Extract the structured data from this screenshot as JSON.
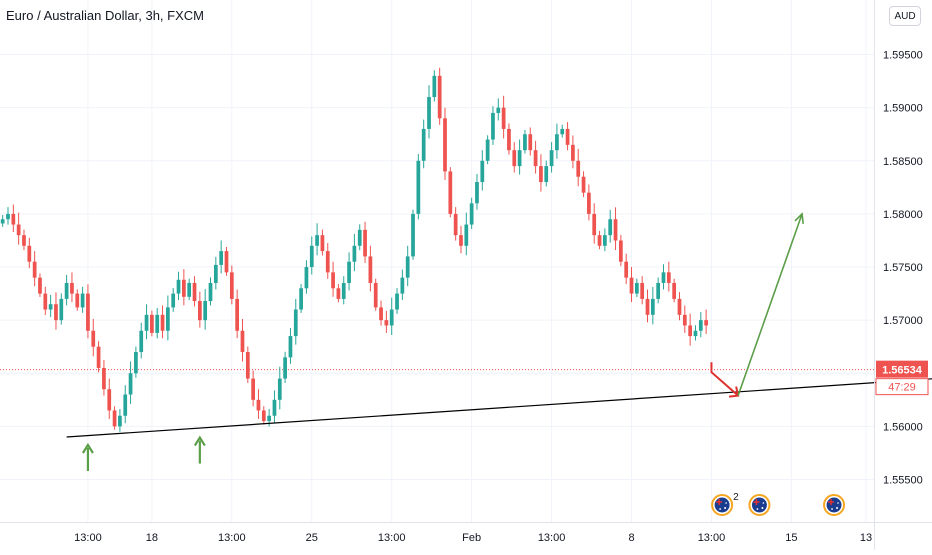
{
  "title": "Euro / Australian Dollar, 3h, FXCM",
  "currency": "AUD",
  "price_label": "1.56534",
  "countdown_label": "47:29",
  "colors": {
    "up": "#26a69a",
    "down": "#ef5350",
    "grid": "#f0f3fa",
    "axis_text": "#131722",
    "trendline": "#000000",
    "arrow_up": "#5b9e48",
    "arrow_down": "#e03030",
    "price_line": "#ef5350"
  },
  "chart_data": {
    "type": "candlestick",
    "title": "Euro / Australian Dollar, 3h, FXCM",
    "xlabel": "",
    "ylabel": "",
    "ylim": [
      1.551,
      1.5975
    ],
    "y_ticks": [
      "1.59500",
      "1.59000",
      "1.58500",
      "1.58000",
      "1.57500",
      "1.57000",
      "1.56500",
      "1.56000",
      "1.55500"
    ],
    "y_tick_values": [
      1.595,
      1.59,
      1.585,
      1.58,
      1.575,
      1.57,
      1.565,
      1.56,
      1.555
    ],
    "x_ticks": [
      {
        "label": "13:00",
        "bar": 16
      },
      {
        "label": "18",
        "bar": 28
      },
      {
        "label": "13:00",
        "bar": 43
      },
      {
        "label": "25",
        "bar": 58
      },
      {
        "label": "13:00",
        "bar": 73
      },
      {
        "label": "Feb",
        "bar": 88
      },
      {
        "label": "13:00",
        "bar": 103
      },
      {
        "label": "8",
        "bar": 118
      },
      {
        "label": "13:00",
        "bar": 133
      },
      {
        "label": "15",
        "bar": 148
      },
      {
        "label": "13",
        "bar": 162
      }
    ],
    "bars_visible": 164,
    "last_price": 1.56534,
    "closes": [
      1.5795,
      1.58,
      1.579,
      1.578,
      1.577,
      1.5755,
      1.574,
      1.5725,
      1.571,
      1.5715,
      1.57,
      1.572,
      1.5735,
      1.5725,
      1.5712,
      1.5725,
      1.569,
      1.5675,
      1.5655,
      1.5635,
      1.5615,
      1.56,
      1.561,
      1.563,
      1.565,
      1.567,
      1.569,
      1.5705,
      1.5688,
      1.5705,
      1.569,
      1.5712,
      1.5725,
      1.5738,
      1.5722,
      1.5735,
      1.5718,
      1.57,
      1.5718,
      1.5735,
      1.5752,
      1.5765,
      1.5745,
      1.572,
      1.569,
      1.567,
      1.5645,
      1.5625,
      1.5615,
      1.5605,
      1.561,
      1.5625,
      1.5645,
      1.5665,
      1.5685,
      1.571,
      1.573,
      1.575,
      1.577,
      1.578,
      1.5765,
      1.5745,
      1.573,
      1.572,
      1.5735,
      1.5755,
      1.577,
      1.5785,
      1.576,
      1.5735,
      1.5712,
      1.57,
      1.5695,
      1.571,
      1.5725,
      1.574,
      1.576,
      1.58,
      1.585,
      1.588,
      1.591,
      1.593,
      1.589,
      1.584,
      1.58,
      1.578,
      1.577,
      1.579,
      1.581,
      1.583,
      1.585,
      1.587,
      1.5895,
      1.59,
      1.588,
      1.586,
      1.5845,
      1.586,
      1.5875,
      1.586,
      1.5845,
      1.583,
      1.5845,
      1.586,
      1.5875,
      1.588,
      1.5865,
      1.585,
      1.5835,
      1.582,
      1.58,
      1.578,
      1.577,
      1.578,
      1.5795,
      1.5775,
      1.5755,
      1.574,
      1.5725,
      1.5735,
      1.572,
      1.5705,
      1.572,
      1.5735,
      1.5745,
      1.5735,
      1.572,
      1.5705,
      1.5695,
      1.5685,
      1.569,
      1.57,
      1.5695
    ]
  },
  "annotations": {
    "trendline": {
      "from": {
        "bar": 12,
        "price": 1.559
      },
      "to": {
        "bar": 175,
        "price": 1.5645
      }
    },
    "support_arrows": [
      {
        "bar": 16,
        "price": 1.559
      },
      {
        "bar": 37,
        "price": 1.5597
      }
    ],
    "projection": [
      {
        "bar": 133,
        "price": 1.5651
      },
      {
        "bar": 138,
        "price": 1.5629
      },
      {
        "bar": 150,
        "price": 1.58
      }
    ]
  },
  "event_icons": [
    {
      "name": "au-flag-icon",
      "label": "2"
    },
    {
      "name": "au-flag-icon",
      "label": ""
    },
    {
      "name": "au-flag-icon",
      "label": ""
    }
  ],
  "event_icon_bars": [
    135,
    142,
    156
  ]
}
